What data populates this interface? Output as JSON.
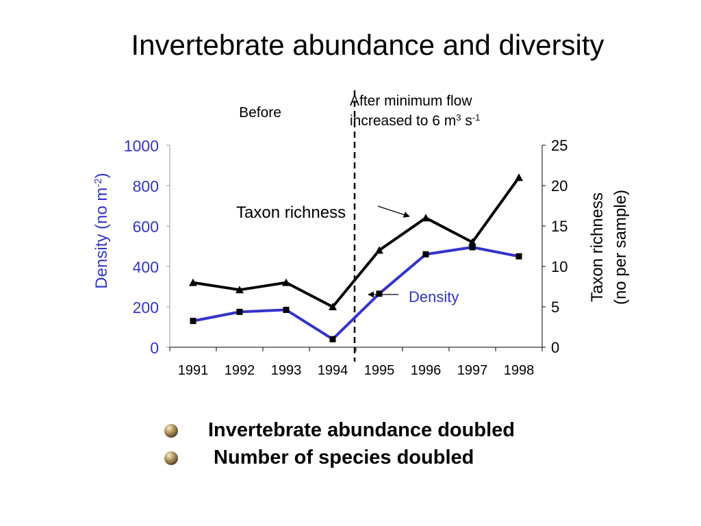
{
  "slide": {
    "title": "Invertebrate abundance and diversity"
  },
  "chart_data": {
    "type": "line",
    "categories": [
      "1991",
      "1992",
      "1993",
      "1994",
      "1995",
      "1996",
      "1997",
      "1998"
    ],
    "series": [
      {
        "name": "Density",
        "axis": "left",
        "values": [
          130,
          175,
          185,
          40,
          265,
          460,
          495,
          450
        ],
        "color": "#3333cc"
      },
      {
        "name": "Taxon richness",
        "axis": "right",
        "values": [
          8,
          7.1,
          8,
          5,
          12,
          16,
          13,
          21
        ],
        "color": "#000000"
      }
    ],
    "y_left": {
      "min": 0,
      "max": 1000,
      "ticks": [
        0,
        200,
        400,
        600,
        800,
        1000
      ],
      "label": "Density (no m",
      "label_sup": "-2",
      "label_end": ")",
      "color": "#3333cc"
    },
    "y_right": {
      "min": 0,
      "max": 25,
      "ticks": [
        0,
        5,
        10,
        15,
        20,
        25
      ],
      "label_line1": "Taxon richness",
      "label_line2": "(no per sample)",
      "color": "#000000"
    },
    "annotations": {
      "before": "Before",
      "after_line1": "After minimum flow",
      "after_line2_a": "increased to 6 m",
      "after_line2_sup1": "3",
      "after_line2_b": " s",
      "after_line2_sup2": "-1",
      "taxon_label": "Taxon richness",
      "density_label": "Density"
    },
    "divider_between": [
      "1994",
      "1995"
    ],
    "grid": false
  },
  "bullets": [
    {
      "text": "Invertebrate abundance doubled"
    },
    {
      "text": " Number of species doubled"
    }
  ]
}
